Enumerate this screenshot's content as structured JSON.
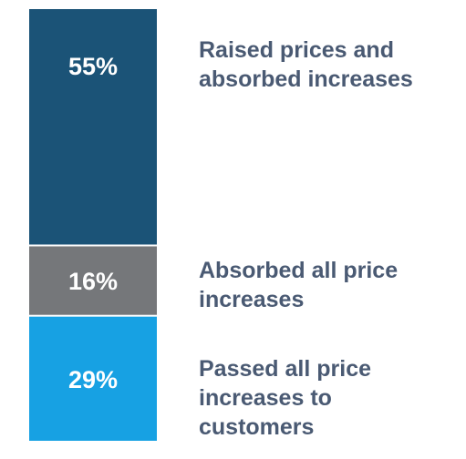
{
  "chart_data": {
    "type": "bar",
    "stacked": true,
    "orientation": "vertical",
    "total": 100,
    "segments": [
      {
        "value": 55,
        "value_label": "55%",
        "label_lines": [
          "Raised prices and",
          "absorbed increases"
        ],
        "color": "#1b5377"
      },
      {
        "value": 16,
        "value_label": "16%",
        "label_lines": [
          "Absorbed all price",
          "increases"
        ],
        "color": "#75777a"
      },
      {
        "value": 29,
        "value_label": "29%",
        "label_lines": [
          "Passed all price",
          "increases to",
          "customers"
        ],
        "color": "#17a1e3"
      }
    ],
    "label_color": "#4a5a73",
    "value_text_color": "#ffffff"
  }
}
